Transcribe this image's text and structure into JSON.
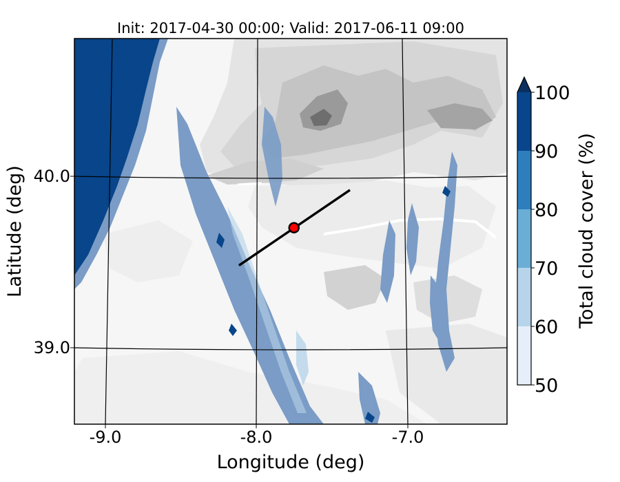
{
  "title": "Init: 2017-04-30 00:00; Valid: 2017-06-11 09:00",
  "xlabel": "Longitude (deg)",
  "ylabel": "Latitude (deg)",
  "x_ticks": [
    "-9.0",
    "-8.0",
    "-7.0"
  ],
  "y_ticks": [
    "40.0",
    "39.0"
  ],
  "colorbar": {
    "label": "Total cloud cover (%)",
    "ticks": [
      "50",
      "60",
      "70",
      "80",
      "90",
      "100"
    ],
    "colors": [
      "#e6eff9",
      "#b7d4ea",
      "#6aaed6",
      "#2e7ebc",
      "#08458a",
      "#0b305f"
    ]
  },
  "map": {
    "lon_range": [
      -9.25,
      -6.4
    ],
    "lat_range": [
      38.55,
      40.8
    ],
    "terrain_colors": [
      "#f6f6f6",
      "#ebebeb",
      "#dcdcdc",
      "#c8c8c8",
      "#a8a8a8",
      "#7a7a7a"
    ],
    "cloud_fill": "#7a9cc6",
    "cross_section": {
      "start": [
        -8.12,
        39.48
      ],
      "end": [
        -7.37,
        39.92
      ],
      "color": "#000000"
    },
    "marker": {
      "lon": -7.75,
      "lat": 39.7,
      "color": "#ff0000"
    }
  }
}
